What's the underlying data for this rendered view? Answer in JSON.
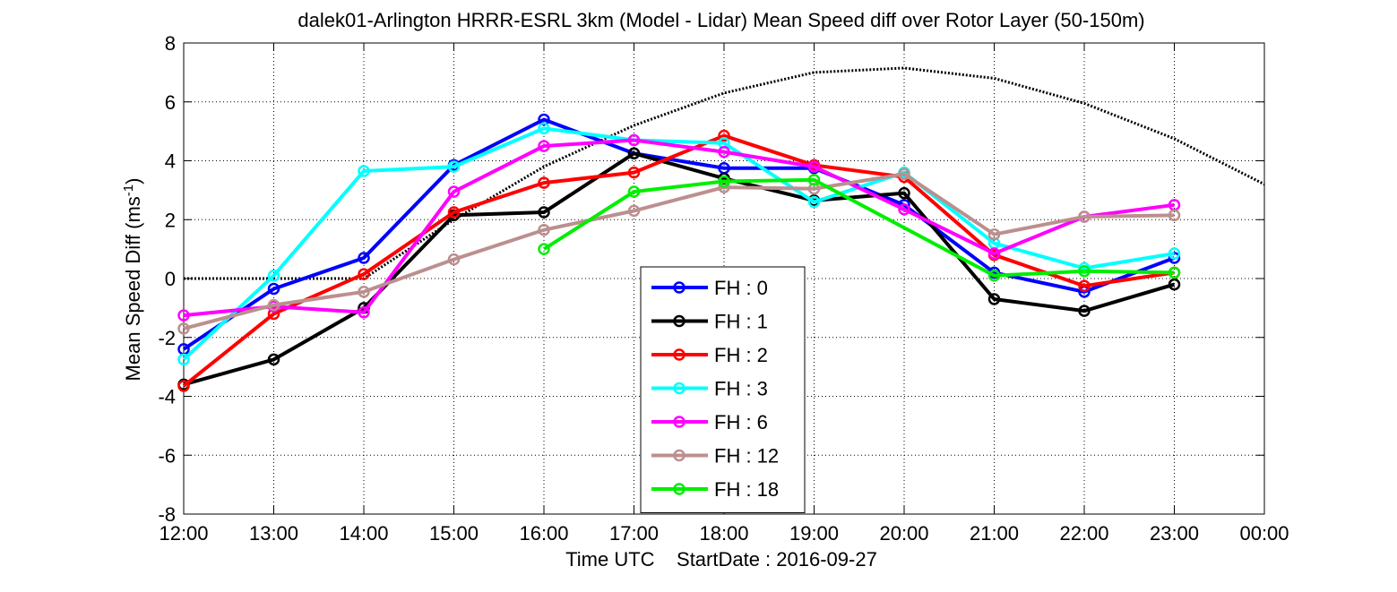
{
  "chart_data": {
    "type": "line",
    "title": "dalek01-Arlington HRRR-ESRL 3km (Model - Lidar) Mean Speed diff over Rotor Layer (50-150m)",
    "xlabel": "Time UTC    StartDate : 2016-09-27",
    "ylabel_main": "Mean Speed Diff (ms",
    "ylabel_sup": "-1",
    "ylabel_close": ")",
    "xlim": [
      0,
      12
    ],
    "ylim": [
      -8,
      8
    ],
    "x_ticks": [
      0,
      1,
      2,
      3,
      4,
      5,
      6,
      7,
      8,
      9,
      10,
      11,
      12
    ],
    "x_tick_labels": [
      "12:00",
      "13:00",
      "14:00",
      "15:00",
      "16:00",
      "17:00",
      "18:00",
      "19:00",
      "20:00",
      "21:00",
      "22:00",
      "23:00",
      "00:00"
    ],
    "y_ticks": [
      -8,
      -6,
      -4,
      -2,
      0,
      2,
      4,
      6,
      8
    ],
    "y_tick_labels": [
      "-8",
      "-6",
      "-4",
      "-2",
      "0",
      "2",
      "4",
      "6",
      "8"
    ],
    "grid": true,
    "legend_position": "bottom-center",
    "series": [
      {
        "name": "FH : 0",
        "color": "#0000ff",
        "x": [
          0,
          1,
          2,
          3,
          4,
          5,
          6,
          7,
          8,
          9,
          10,
          11
        ],
        "values": [
          -2.4,
          -0.35,
          0.7,
          3.85,
          5.4,
          4.25,
          3.75,
          3.75,
          2.5,
          0.2,
          -0.45,
          0.7
        ]
      },
      {
        "name": "FH : 1",
        "color": "#000000",
        "x": [
          0,
          1,
          2,
          3,
          4,
          5,
          6,
          7,
          8,
          9,
          10,
          11
        ],
        "values": [
          -3.6,
          -2.75,
          -1.0,
          2.15,
          2.25,
          4.25,
          3.4,
          2.65,
          2.9,
          -0.7,
          -1.1,
          -0.2
        ]
      },
      {
        "name": "FH : 2",
        "color": "#ff0000",
        "x": [
          0,
          1,
          2,
          3,
          4,
          5,
          6,
          7,
          8,
          9,
          10,
          11
        ],
        "values": [
          -3.65,
          -1.2,
          0.15,
          2.25,
          3.25,
          3.6,
          4.85,
          3.85,
          3.45,
          0.8,
          -0.25,
          0.2
        ]
      },
      {
        "name": "FH : 3",
        "color": "#00ffff",
        "x": [
          0,
          1,
          2,
          3,
          4,
          5,
          6,
          7,
          8,
          9,
          10,
          11
        ],
        "values": [
          -2.75,
          0.1,
          3.65,
          3.8,
          5.1,
          4.7,
          4.6,
          2.6,
          3.6,
          1.2,
          0.35,
          0.85
        ]
      },
      {
        "name": "FH : 6",
        "color": "#ff00ff",
        "x": [
          0,
          1,
          2,
          3,
          4,
          5,
          6,
          7,
          8,
          9,
          10,
          11
        ],
        "values": [
          -1.25,
          -0.95,
          -1.15,
          2.95,
          4.5,
          4.7,
          4.3,
          3.8,
          2.35,
          0.85,
          2.1,
          2.5
        ]
      },
      {
        "name": "FH : 12",
        "color": "#bc8f8f",
        "x": [
          0,
          1,
          2,
          3,
          4,
          5,
          6,
          7,
          8,
          9,
          10,
          11
        ],
        "values": [
          -1.7,
          -0.9,
          -0.45,
          0.65,
          1.65,
          2.3,
          3.1,
          3.05,
          3.55,
          1.5,
          2.1,
          2.15
        ]
      },
      {
        "name": "FH : 18",
        "color": "#00ee00",
        "x": [
          4,
          5,
          6,
          7,
          9,
          10,
          11
        ],
        "values": [
          1.0,
          2.95,
          3.3,
          3.35,
          0.1,
          0.25,
          0.2
        ]
      }
    ],
    "aux_lines": [
      {
        "style": "dotted",
        "color": "#000000",
        "x": [
          0,
          1,
          2,
          3,
          4,
          5,
          6,
          7,
          8,
          9,
          10,
          11,
          12
        ],
        "values": [
          0.0,
          0.0,
          0.0,
          2.0,
          3.8,
          5.2,
          6.3,
          7.0,
          7.15,
          6.8,
          5.95,
          4.75,
          3.2
        ]
      },
      {
        "style": "dashed",
        "color": "#00cc00",
        "x": [
          7,
          9
        ],
        "values": [
          3.35,
          0.1
        ]
      }
    ]
  }
}
